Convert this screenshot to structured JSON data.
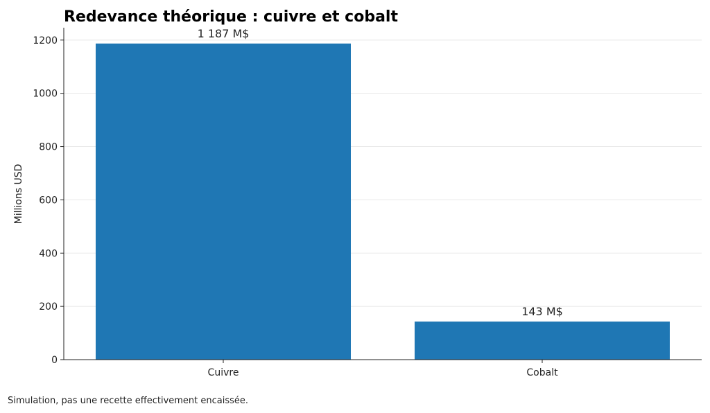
{
  "chart_data": {
    "type": "bar",
    "title": "Redevance théorique : cuivre et cobalt",
    "y_label": "Millions USD",
    "categories": [
      "Cuivre",
      "Cobalt"
    ],
    "values": [
      1187,
      143
    ],
    "value_labels": [
      "1 187 M$",
      "143 M$"
    ],
    "color": "#1f77b4",
    "ylim": [
      0,
      1246.35
    ],
    "yticks": [
      0,
      200,
      400,
      600,
      800,
      1000,
      1200
    ],
    "grid": true,
    "footnote": "Simulation, pas une recette effectivement encaissée."
  }
}
